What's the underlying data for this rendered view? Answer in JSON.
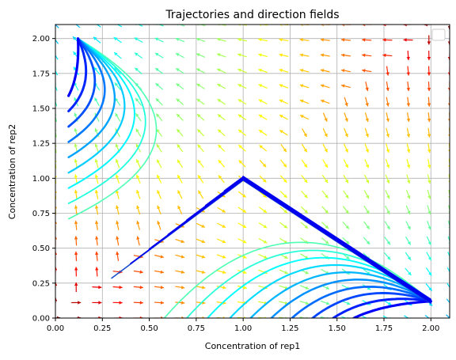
{
  "chart_data": {
    "type": "line",
    "title": "Trajectories and direction fields",
    "xlabel": "Concentration of rep1",
    "ylabel": "Concentration of rep2",
    "xlim": [
      0,
      2.1
    ],
    "ylim": [
      0,
      2.1
    ],
    "x_ticks": [
      "0.00",
      "0.25",
      "0.50",
      "0.75",
      "1.00",
      "1.25",
      "1.50",
      "1.75",
      "2.00"
    ],
    "y_ticks": [
      "0.00",
      "0.25",
      "0.50",
      "0.75",
      "1.00",
      "1.25",
      "1.50",
      "1.75",
      "2.00"
    ],
    "grid": true,
    "legend": {
      "placement": "top-right",
      "entries": []
    },
    "colormap": "jet",
    "quiver_grid": {
      "min": 0,
      "max": 2.1,
      "count": 20
    },
    "stable_points": [
      [
        0.12,
        2.0
      ],
      [
        2.0,
        0.12
      ]
    ],
    "saddle_point": [
      1.0,
      1.0
    ],
    "series": [
      {
        "start": [
          0.3,
          0.3
        ],
        "upper_end": [
          0.12,
          2.0
        ],
        "lower_end": [
          2.0,
          0.12
        ]
      },
      {
        "start": [
          0.4,
          0.4
        ],
        "upper_end": [
          0.12,
          2.0
        ],
        "lower_end": [
          2.0,
          0.12
        ]
      },
      {
        "start": [
          0.5,
          0.5
        ],
        "upper_end": [
          0.12,
          2.0
        ],
        "lower_end": [
          2.0,
          0.12
        ]
      },
      {
        "start": [
          0.6,
          0.6
        ],
        "upper_end": [
          0.12,
          2.0
        ],
        "lower_end": [
          2.0,
          0.12
        ]
      },
      {
        "start": [
          0.7,
          0.7
        ],
        "upper_end": [
          0.12,
          2.0
        ],
        "lower_end": [
          2.0,
          0.12
        ]
      },
      {
        "start": [
          0.8,
          0.8
        ],
        "upper_end": [
          0.12,
          2.0
        ],
        "lower_end": [
          2.0,
          0.12
        ]
      },
      {
        "start": [
          0.9,
          0.9
        ],
        "upper_end": [
          0.12,
          2.0
        ],
        "lower_end": [
          2.0,
          0.12
        ]
      },
      {
        "start": [
          1.0,
          1.0
        ],
        "upper_end": [
          0.12,
          2.0
        ],
        "lower_end": [
          2.0,
          0.12
        ]
      }
    ],
    "left_curves": [
      {
        "y0": 0.71,
        "bulge": 0.53
      },
      {
        "y0": 0.82,
        "bulge": 0.47
      },
      {
        "y0": 0.93,
        "bulge": 0.41
      },
      {
        "y0": 1.04,
        "bulge": 0.36
      },
      {
        "y0": 1.15,
        "bulge": 0.31
      },
      {
        "y0": 1.26,
        "bulge": 0.26
      },
      {
        "y0": 1.37,
        "bulge": 0.21
      },
      {
        "y0": 1.48,
        "bulge": 0.17
      },
      {
        "y0": 1.59,
        "bulge": 0.13
      }
    ],
    "bottom_curves": [
      {
        "x0": 0.58,
        "peak": 0.52
      },
      {
        "x0": 0.7,
        "peak": 0.46
      },
      {
        "x0": 0.81,
        "peak": 0.41
      },
      {
        "x0": 0.93,
        "peak": 0.36
      },
      {
        "x0": 1.04,
        "peak": 0.31
      },
      {
        "x0": 1.15,
        "peak": 0.26
      },
      {
        "x0": 1.26,
        "peak": 0.21
      },
      {
        "x0": 1.37,
        "peak": 0.17
      },
      {
        "x0": 1.48,
        "peak": 0.13
      },
      {
        "x0": 1.59,
        "peak": 0.1
      }
    ]
  }
}
